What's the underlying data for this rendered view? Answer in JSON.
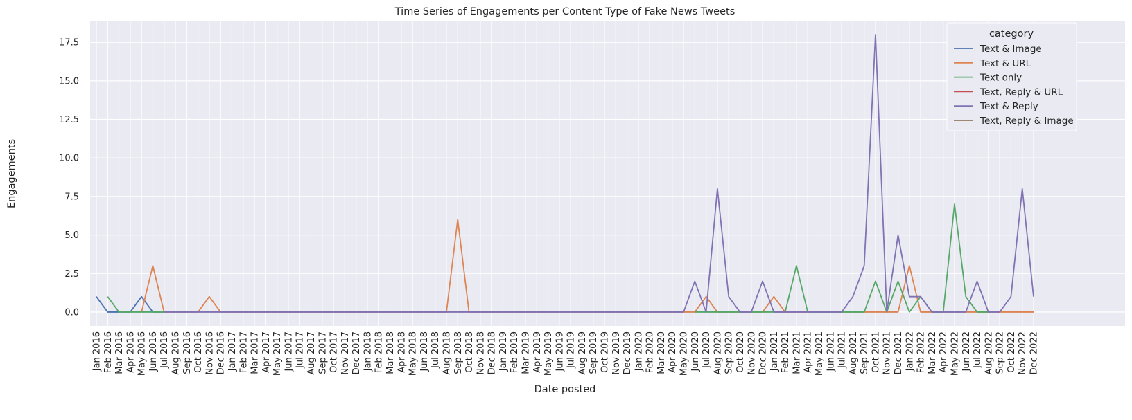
{
  "chart_data": {
    "type": "line",
    "title": "Time Series of Engagements per Content Type of Fake News Tweets",
    "xlabel": "Date posted",
    "ylabel": "Engagements",
    "ylim": [
      -0.9,
      18.9
    ],
    "yticks": [
      0.0,
      2.5,
      5.0,
      7.5,
      10.0,
      12.5,
      15.0,
      17.5
    ],
    "ytick_labels": [
      "0.0",
      "2.5",
      "5.0",
      "7.5",
      "10.0",
      "12.5",
      "15.0",
      "17.5"
    ],
    "grid": true,
    "legend": {
      "title": "category",
      "placement": "top-right"
    },
    "x": [
      "Jan 2016",
      "Feb 2016",
      "Mar 2016",
      "Apr 2016",
      "May 2016",
      "Jun 2016",
      "Jul 2016",
      "Aug 2016",
      "Sep 2016",
      "Oct 2016",
      "Nov 2016",
      "Dec 2016",
      "Jan 2017",
      "Feb 2017",
      "Mar 2017",
      "Apr 2017",
      "May 2017",
      "Jun 2017",
      "Jul 2017",
      "Aug 2017",
      "Sep 2017",
      "Oct 2017",
      "Nov 2017",
      "Dec 2017",
      "Jan 2018",
      "Feb 2018",
      "Mar 2018",
      "Apr 2018",
      "May 2018",
      "Jun 2018",
      "Jul 2018",
      "Aug 2018",
      "Sep 2018",
      "Oct 2018",
      "Nov 2018",
      "Dec 2018",
      "Jan 2019",
      "Feb 2019",
      "Mar 2019",
      "Apr 2019",
      "May 2019",
      "Jun 2019",
      "Jul 2019",
      "Aug 2019",
      "Sep 2019",
      "Oct 2019",
      "Nov 2019",
      "Dec 2019",
      "Jan 2020",
      "Feb 2020",
      "Mar 2020",
      "Apr 2020",
      "May 2020",
      "Jun 2020",
      "Jul 2020",
      "Aug 2020",
      "Sep 2020",
      "Oct 2020",
      "Nov 2020",
      "Dec 2020",
      "Jan 2021",
      "Feb 2021",
      "Mar 2021",
      "Apr 2021",
      "May 2021",
      "Jun 2021",
      "Jul 2021",
      "Aug 2021",
      "Sep 2021",
      "Oct 2021",
      "Nov 2021",
      "Dec 2021",
      "Jan 2022",
      "Feb 2022",
      "Mar 2022",
      "Apr 2022",
      "May 2022",
      "Jun 2022",
      "Jul 2022",
      "Aug 2022",
      "Sep 2022",
      "Oct 2022",
      "Nov 2022",
      "Dec 2022"
    ],
    "series": [
      {
        "name": "Text & Image",
        "color": "#4c72b0",
        "points": [
          [
            "Jan 2016",
            1
          ],
          [
            "Feb 2016",
            0
          ],
          [
            "Mar 2016",
            0
          ],
          [
            "Apr 2016",
            0
          ],
          [
            "May 2016",
            1
          ],
          [
            "Jun 2016",
            0
          ],
          [
            "Jul 2016",
            0
          ]
        ]
      },
      {
        "name": "Text & URL",
        "color": "#dd8452",
        "points": [
          [
            "May 2016",
            0
          ],
          [
            "Jun 2016",
            3
          ],
          [
            "Jul 2016",
            0
          ],
          [
            "Aug 2016",
            0
          ],
          [
            "Sep 2016",
            0
          ],
          [
            "Oct 2016",
            0
          ],
          [
            "Nov 2016",
            1
          ],
          [
            "Dec 2016",
            0
          ],
          [
            "Jan 2017",
            0
          ],
          [
            "Feb 2017",
            0
          ],
          [
            "Mar 2017",
            0
          ],
          [
            "Apr 2017",
            0
          ],
          [
            "May 2017",
            0
          ],
          [
            "Jun 2017",
            0
          ],
          [
            "Jul 2017",
            0
          ],
          [
            "Aug 2017",
            0
          ],
          [
            "Sep 2017",
            0
          ],
          [
            "Oct 2017",
            0
          ],
          [
            "Nov 2017",
            0
          ],
          [
            "Dec 2017",
            0
          ],
          [
            "Jan 2018",
            0
          ],
          [
            "Feb 2018",
            0
          ],
          [
            "Mar 2018",
            0
          ],
          [
            "Apr 2018",
            0
          ],
          [
            "May 2018",
            0
          ],
          [
            "Jun 2018",
            0
          ],
          [
            "Jul 2018",
            0
          ],
          [
            "Aug 2018",
            0
          ],
          [
            "Sep 2018",
            6
          ],
          [
            "Oct 2018",
            0
          ],
          [
            "Nov 2018",
            0
          ],
          [
            "Dec 2018",
            0
          ],
          [
            "Jan 2019",
            0
          ],
          [
            "Feb 2019",
            0
          ],
          [
            "Mar 2019",
            0
          ],
          [
            "Apr 2019",
            0
          ],
          [
            "May 2019",
            0
          ],
          [
            "Jun 2019",
            0
          ],
          [
            "Jul 2019",
            0
          ],
          [
            "Aug 2019",
            0
          ],
          [
            "Sep 2019",
            0
          ],
          [
            "Oct 2019",
            0
          ],
          [
            "Nov 2019",
            0
          ],
          [
            "Dec 2019",
            0
          ],
          [
            "Jan 2020",
            0
          ],
          [
            "Feb 2020",
            0
          ],
          [
            "Mar 2020",
            0
          ],
          [
            "Apr 2020",
            0
          ],
          [
            "May 2020",
            0
          ],
          [
            "Jun 2020",
            0
          ],
          [
            "Jul 2020",
            1
          ],
          [
            "Aug 2020",
            0
          ],
          [
            "Sep 2020",
            0
          ],
          [
            "Oct 2020",
            0
          ],
          [
            "Nov 2020",
            0
          ],
          [
            "Dec 2020",
            0
          ],
          [
            "Jan 2021",
            1
          ],
          [
            "Feb 2021",
            0
          ],
          [
            "Mar 2021",
            0
          ],
          [
            "Apr 2021",
            0
          ],
          [
            "May 2021",
            0
          ],
          [
            "Jun 2021",
            0
          ],
          [
            "Jul 2021",
            0
          ],
          [
            "Aug 2021",
            0
          ],
          [
            "Sep 2021",
            0
          ],
          [
            "Oct 2021",
            0
          ],
          [
            "Nov 2021",
            0
          ],
          [
            "Dec 2021",
            0
          ],
          [
            "Jan 2022",
            3
          ],
          [
            "Feb 2022",
            0
          ],
          [
            "Mar 2022",
            0
          ],
          [
            "Apr 2022",
            0
          ],
          [
            "May 2022",
            0
          ],
          [
            "Jun 2022",
            0
          ],
          [
            "Jul 2022",
            0
          ],
          [
            "Aug 2022",
            0
          ],
          [
            "Sep 2022",
            0
          ],
          [
            "Oct 2022",
            0
          ],
          [
            "Nov 2022",
            0
          ],
          [
            "Dec 2022",
            0
          ]
        ]
      },
      {
        "name": "Text only",
        "color": "#55a868",
        "points": [
          [
            "Feb 2016",
            1
          ],
          [
            "Mar 2016",
            0
          ],
          [
            "Apr 2016",
            0
          ],
          [
            "May 2016",
            0
          ],
          [
            "Jun 2016",
            0
          ],
          [
            "Jul 2016",
            0
          ],
          [
            "Jun 2020",
            0
          ],
          [
            "Jul 2020",
            0
          ],
          [
            "Aug 2020",
            0
          ],
          [
            "Sep 2020",
            0
          ],
          [
            "Oct 2020",
            0
          ],
          [
            "Nov 2020",
            0
          ],
          [
            "Dec 2020",
            0
          ],
          [
            "Jan 2021",
            0
          ],
          [
            "Feb 2021",
            0
          ],
          [
            "Mar 2021",
            3
          ],
          [
            "Apr 2021",
            0
          ],
          [
            "May 2021",
            0
          ],
          [
            "Jun 2021",
            0
          ],
          [
            "Jul 2021",
            0
          ],
          [
            "Aug 2021",
            0
          ],
          [
            "Sep 2021",
            0
          ],
          [
            "Oct 2021",
            2
          ],
          [
            "Nov 2021",
            0
          ],
          [
            "Dec 2021",
            2
          ],
          [
            "Jan 2022",
            0
          ],
          [
            "Feb 2022",
            1
          ],
          [
            "Mar 2022",
            0
          ],
          [
            "Apr 2022",
            0
          ],
          [
            "May 2022",
            7
          ],
          [
            "Jun 2022",
            1
          ],
          [
            "Jul 2022",
            0
          ],
          [
            "Aug 2022",
            0
          ]
        ]
      },
      {
        "name": "Text, Reply & URL",
        "color": "#c44e52",
        "points": []
      },
      {
        "name": "Text & Reply",
        "color": "#8172b3",
        "points": [
          [
            "Jul 2016",
            0
          ],
          [
            "Aug 2016",
            0
          ],
          [
            "Sep 2016",
            0
          ],
          [
            "Oct 2016",
            0
          ],
          [
            "Nov 2016",
            0
          ],
          [
            "Dec 2016",
            0
          ],
          [
            "Jan 2017",
            0
          ],
          [
            "Feb 2017",
            0
          ],
          [
            "Mar 2017",
            0
          ],
          [
            "Apr 2017",
            0
          ],
          [
            "May 2017",
            0
          ],
          [
            "Jun 2017",
            0
          ],
          [
            "Jul 2017",
            0
          ],
          [
            "Aug 2017",
            0
          ],
          [
            "Sep 2017",
            0
          ],
          [
            "Oct 2017",
            0
          ],
          [
            "Nov 2017",
            0
          ],
          [
            "Dec 2017",
            0
          ],
          [
            "Jan 2018",
            0
          ],
          [
            "Feb 2018",
            0
          ],
          [
            "Mar 2018",
            0
          ],
          [
            "Apr 2018",
            0
          ],
          [
            "May 2018",
            0
          ],
          [
            "Jun 2018",
            0
          ],
          [
            "Jul 2018",
            0
          ],
          [
            "Aug 2018",
            0
          ],
          [
            "Sep 2018",
            0
          ],
          [
            "Oct 2018",
            0
          ],
          [
            "Nov 2018",
            0
          ],
          [
            "Dec 2018",
            0
          ],
          [
            "Jan 2019",
            0
          ],
          [
            "Feb 2019",
            0
          ],
          [
            "Mar 2019",
            0
          ],
          [
            "Apr 2019",
            0
          ],
          [
            "May 2019",
            0
          ],
          [
            "Jun 2019",
            0
          ],
          [
            "Jul 2019",
            0
          ],
          [
            "Aug 2019",
            0
          ],
          [
            "Sep 2019",
            0
          ],
          [
            "Oct 2019",
            0
          ],
          [
            "Nov 2019",
            0
          ],
          [
            "Dec 2019",
            0
          ],
          [
            "Jan 2020",
            0
          ],
          [
            "Feb 2020",
            0
          ],
          [
            "Mar 2020",
            0
          ],
          [
            "Apr 2020",
            0
          ],
          [
            "May 2020",
            0
          ],
          [
            "Jun 2020",
            2
          ],
          [
            "Jul 2020",
            0
          ],
          [
            "Aug 2020",
            8
          ],
          [
            "Sep 2020",
            1
          ],
          [
            "Oct 2020",
            0
          ],
          [
            "Nov 2020",
            0
          ],
          [
            "Dec 2020",
            2
          ],
          [
            "Jan 2021",
            0
          ],
          [
            "Feb 2021",
            0
          ],
          [
            "Mar 2021",
            0
          ],
          [
            "Apr 2021",
            0
          ],
          [
            "May 2021",
            0
          ],
          [
            "Jun 2021",
            0
          ],
          [
            "Jul 2021",
            0
          ],
          [
            "Aug 2021",
            1
          ],
          [
            "Sep 2021",
            3
          ],
          [
            "Oct 2021",
            18
          ],
          [
            "Nov 2021",
            0
          ],
          [
            "Dec 2021",
            5
          ],
          [
            "Jan 2022",
            1
          ],
          [
            "Feb 2022",
            1
          ],
          [
            "Mar 2022",
            0
          ],
          [
            "Apr 2022",
            0
          ],
          [
            "May 2022",
            0
          ],
          [
            "Jun 2022",
            0
          ],
          [
            "Jul 2022",
            2
          ],
          [
            "Aug 2022",
            0
          ],
          [
            "Sep 2022",
            0
          ],
          [
            "Oct 2022",
            1
          ],
          [
            "Nov 2022",
            8
          ],
          [
            "Dec 2022",
            1
          ]
        ]
      },
      {
        "name": "Text, Reply & Image",
        "color": "#937860",
        "points": []
      }
    ]
  }
}
